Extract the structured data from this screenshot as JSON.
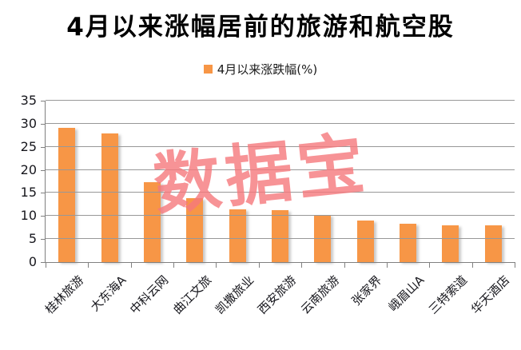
{
  "page": {
    "title": "4月以来涨幅居前的旅游和航空股"
  },
  "legend": {
    "label": "4月以来涨跌幅(%)",
    "marker_color": "#F79646"
  },
  "watermark": {
    "text": "数据宝",
    "color": "#F6797D"
  },
  "chart_data": {
    "type": "bar",
    "title": "4月以来涨幅居前的旅游和航空股",
    "legend_entries": [
      "4月以来涨跌幅(%)"
    ],
    "legend_position": "top-center",
    "categories": [
      "桂林旅游",
      "大东海A",
      "中科云网",
      "曲江文旅",
      "凯撒旅业",
      "西安旅游",
      "云南旅游",
      "张家界",
      "峨眉山A",
      "三特索道",
      "华天酒店"
    ],
    "values": [
      29.1,
      27.9,
      17.3,
      13.9,
      11.5,
      11.3,
      10.2,
      9.0,
      8.3,
      7.9,
      7.9
    ],
    "unit": "%",
    "xlabel": "",
    "ylabel": "",
    "ylim": [
      0,
      35
    ],
    "yticks": [
      0,
      5,
      10,
      15,
      20,
      25,
      30,
      35
    ],
    "grid": true,
    "bar_color": "#F79646",
    "watermark": "数据宝"
  }
}
